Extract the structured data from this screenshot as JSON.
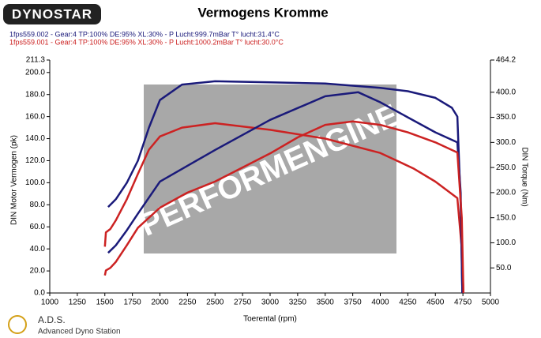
{
  "chart_data": {
    "type": "line",
    "logo": "DYNOSTAR",
    "title": "Vermogens Kromme",
    "runs": [
      {
        "text": "1fps559.002 - Gear:4 TP:100% DE:95% XL:30%   - P Lucht:999.7mBar T° lucht:31.4°C",
        "color": "#1a1a7a"
      },
      {
        "text": "1fps559.001 - Gear:4 TP:100% DE:95% XL:30%   - P Lucht:1000.2mBar T° lucht:30.0°C",
        "color": "#cc2222"
      }
    ],
    "watermark": "PERFORMENGINE",
    "xlabel": "Toerental (rpm)",
    "ylabel": "DIN Motor Vermogen (pk)",
    "y2label": "DIN Torque (Nm)",
    "footer_title": "A.D.S.",
    "footer_subtitle": "Advanced Dyno Station",
    "xlim": [
      1000,
      5000
    ],
    "xticks": [
      1000,
      1250,
      1500,
      1750,
      2000,
      2250,
      2500,
      2750,
      3000,
      3250,
      3500,
      3750,
      4000,
      4250,
      4500,
      4750,
      5000
    ],
    "ylim": [
      0,
      211.3
    ],
    "yticks": [
      {
        "value": 0,
        "label": "0.0"
      },
      {
        "value": 20,
        "label": "20.0"
      },
      {
        "value": 40,
        "label": "40.0"
      },
      {
        "value": 60,
        "label": "60.0"
      },
      {
        "value": 80,
        "label": "80.0"
      },
      {
        "value": 100,
        "label": "100.0"
      },
      {
        "value": 120,
        "label": "120.0"
      },
      {
        "value": 140,
        "label": "140.0"
      },
      {
        "value": 160,
        "label": "160.0"
      },
      {
        "value": 180,
        "label": "180.0"
      },
      {
        "value": 200,
        "label": "200.0"
      },
      211.3
    ],
    "y2lim": [
      0,
      464.2
    ],
    "y2ticks": [
      {
        "value": 50,
        "label": "50.0"
      },
      {
        "value": 100,
        "label": "100.0"
      },
      {
        "value": 150,
        "label": "150.0"
      },
      {
        "value": 200,
        "label": "200.0"
      },
      {
        "value": 250,
        "label": "250.0"
      },
      {
        "value": 300,
        "label": "300.0"
      },
      {
        "value": 350,
        "label": "350.0"
      },
      {
        "value": 400,
        "label": "400.0"
      },
      464.2
    ],
    "series": [
      {
        "color": "#1a1a7a",
        "x": [
          1530,
          1600,
          1700,
          1800,
          1900,
          2000,
          2200,
          2500,
          3000,
          3500,
          4000,
          4250,
          4500,
          4650,
          4700,
          4730,
          4745
        ],
        "values": [
          78,
          85,
          100,
          120,
          150,
          175,
          189,
          192,
          191,
          190,
          186,
          183,
          177,
          168,
          160,
          80,
          0
        ]
      },
      {
        "color": "#cc2222",
        "x": [
          1500,
          1510,
          1550,
          1600,
          1700,
          1800,
          1900,
          2000,
          2200,
          2500,
          3000,
          3500,
          4000,
          4300,
          4500,
          4700,
          4740,
          4755
        ],
        "values": [
          42,
          55,
          58,
          66,
          85,
          108,
          130,
          142,
          150,
          154,
          148,
          140,
          127,
          113,
          101,
          86,
          40,
          0
        ]
      },
      {
        "color": "#1a1a7a",
        "axis": "y2",
        "x": [
          1530,
          1600,
          1700,
          1800,
          2000,
          2500,
          3000,
          3500,
          3800,
          4000,
          4250,
          4500,
          4700,
          4730,
          4745
        ],
        "values": [
          80,
          95,
          125,
          158,
          222,
          285,
          345,
          392,
          400,
          380,
          350,
          320,
          300,
          200,
          0
        ]
      },
      {
        "color": "#cc2222",
        "axis": "y2",
        "x": [
          1500,
          1510,
          1550,
          1600,
          1700,
          1800,
          2000,
          2250,
          2500,
          3000,
          3250,
          3500,
          3750,
          4000,
          4250,
          4500,
          4700,
          4740,
          4755
        ],
        "values": [
          35,
          45,
          50,
          62,
          95,
          130,
          170,
          200,
          222,
          278,
          310,
          335,
          342,
          335,
          320,
          300,
          280,
          150,
          0
        ]
      }
    ]
  }
}
